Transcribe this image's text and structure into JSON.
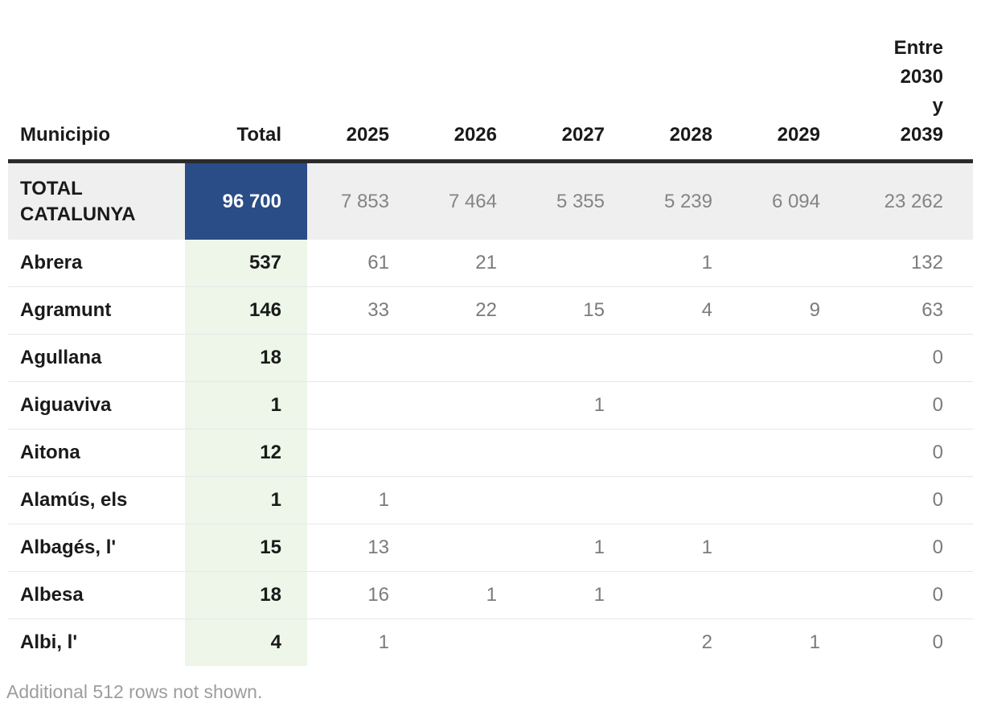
{
  "chart_data": {
    "type": "table",
    "columns": [
      "Municipio",
      "Total",
      "2025",
      "2026",
      "2027",
      "2028",
      "2029",
      "Entre 2030 y 2039"
    ],
    "total_row": {
      "name": "TOTAL CATALUNYA",
      "total": "96 700",
      "values": [
        "7 853",
        "7 464",
        "5 355",
        "5 239",
        "6 094",
        "23 262"
      ]
    },
    "rows": [
      {
        "name": "Abrera",
        "total": "537",
        "values": [
          "61",
          "21",
          "",
          "1",
          "",
          "132"
        ]
      },
      {
        "name": "Agramunt",
        "total": "146",
        "values": [
          "33",
          "22",
          "15",
          "4",
          "9",
          "63"
        ]
      },
      {
        "name": "Agullana",
        "total": "18",
        "values": [
          "",
          "",
          "",
          "",
          "",
          "0"
        ]
      },
      {
        "name": "Aiguaviva",
        "total": "1",
        "values": [
          "",
          "",
          "1",
          "",
          "",
          "0"
        ]
      },
      {
        "name": "Aitona",
        "total": "12",
        "values": [
          "",
          "",
          "",
          "",
          "",
          "0"
        ]
      },
      {
        "name": "Alamús, els",
        "total": "1",
        "values": [
          "1",
          "",
          "",
          "",
          "",
          "0"
        ]
      },
      {
        "name": "Albagés, l'",
        "total": "15",
        "values": [
          "13",
          "",
          "1",
          "1",
          "",
          "0"
        ]
      },
      {
        "name": "Albesa",
        "total": "18",
        "values": [
          "16",
          "1",
          "1",
          "",
          "",
          "0"
        ]
      },
      {
        "name": "Albi, l'",
        "total": "4",
        "values": [
          "1",
          "",
          "",
          "2",
          "1",
          "0"
        ]
      }
    ],
    "layout_hints": {
      "grid": "horizontal-row-separators",
      "total_column_highlight": true,
      "header_rule": "thick-dark"
    }
  },
  "footer": {
    "note": "Additional 512 rows not shown."
  },
  "colors": {
    "total_cell_blue": "#2a4d87",
    "total_column_green": "#edf6e9",
    "total_row_gray": "#efefef",
    "header_rule_dark": "#2b2b2b",
    "value_gray": "#7b7b7b",
    "footer_gray": "#9d9d9d"
  }
}
